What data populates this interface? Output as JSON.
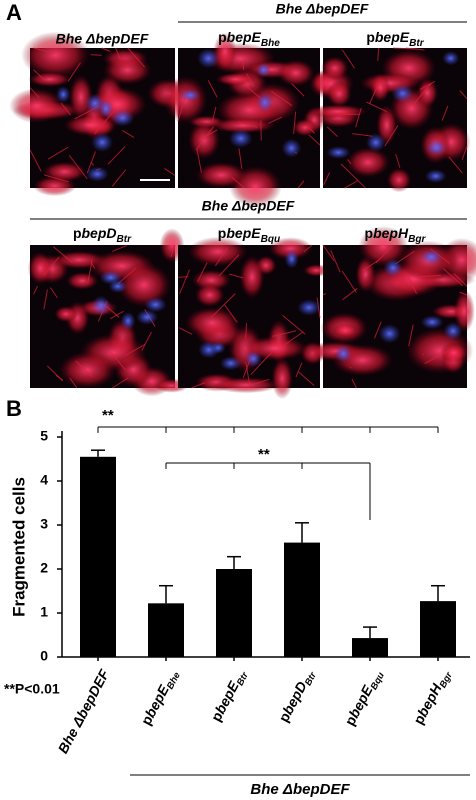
{
  "panel_a": {
    "label": "A",
    "top_left": "Bhe ΔbepDEF",
    "top_group": "Bhe ΔbepDEF",
    "top_images": [
      [
        "p",
        "bepE",
        "Bhe"
      ],
      [
        "p",
        "bepE",
        "Btr"
      ]
    ],
    "bottom_group": "Bhe ΔbepDEF",
    "bottom_images": [
      [
        "p",
        "bepD",
        "Btr"
      ],
      [
        "p",
        "bepE",
        "Bqu"
      ],
      [
        "p",
        "bepH",
        "Bgr"
      ]
    ]
  },
  "chart_data": {
    "type": "bar",
    "panel_label": "B",
    "y_label": "Fragmented cells",
    "categories": [
      [
        "Bhe ΔbepDEF"
      ],
      [
        "p",
        "bepE",
        "Bhe"
      ],
      [
        "p",
        "bepE",
        "Btr"
      ],
      [
        "p",
        "bepD",
        "Btr"
      ],
      [
        "p",
        "bepE",
        "Bqu"
      ],
      [
        "p",
        "bepH",
        "Bgr"
      ]
    ],
    "values": [
      4.55,
      1.22,
      2.0,
      2.6,
      0.43,
      1.27
    ],
    "errors": [
      0.15,
      0.4,
      0.28,
      0.45,
      0.25,
      0.35
    ],
    "color": "#000000",
    "ylim": [
      0,
      5
    ],
    "yticks": [
      0,
      1,
      2,
      3,
      4,
      5
    ],
    "significance": [
      "**",
      "**"
    ],
    "footnote": "**P<0.01",
    "group_label": "Bhe ΔbepDEF"
  }
}
